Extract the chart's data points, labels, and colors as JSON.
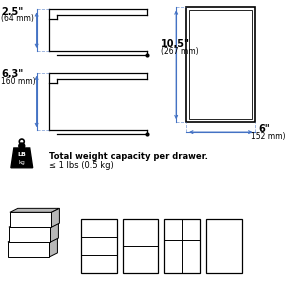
{
  "blue": "#4472c4",
  "black": "#000000",
  "bg": "#ffffff",
  "dim1_label": "2.5\"",
  "dim1_sub": "(64 mm)",
  "dim2_label": "6.3\"",
  "dim2_sub": "160 mm)",
  "dim3_label": "10.5\"",
  "dim3_sub": "(267 mm)",
  "dim4_label": "6\"",
  "dim4_sub": "152 mm)",
  "weight_line1": "Total weight capacity per drawer.",
  "weight_line2": "≤ 1 lbs (0.5 kg)"
}
